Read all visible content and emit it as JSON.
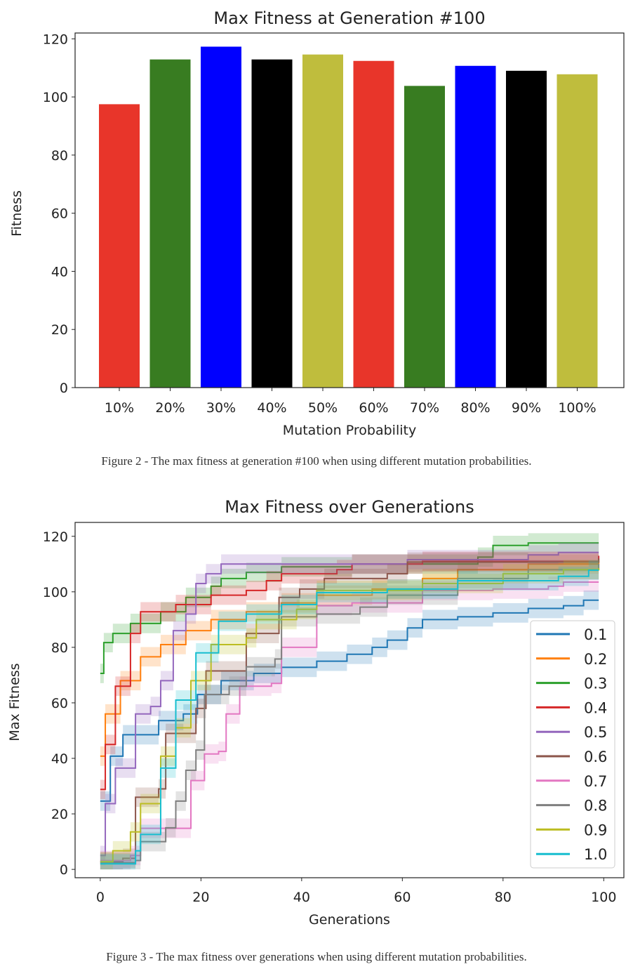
{
  "chart_data": [
    {
      "type": "bar",
      "title": "Max Fitness at Generation #100",
      "xlabel": "Mutation Probability",
      "ylabel": "Fitness",
      "ylim": [
        0,
        122
      ],
      "yticks": [
        0,
        20,
        40,
        60,
        80,
        100,
        120
      ],
      "grid": false,
      "categories": [
        "10%",
        "20%",
        "30%",
        "40%",
        "50%",
        "60%",
        "70%",
        "80%",
        "90%",
        "100%"
      ],
      "values": [
        97.5,
        112.9,
        117.3,
        112.9,
        114.6,
        112.4,
        103.8,
        110.7,
        109,
        107.8
      ],
      "colors": [
        "#e8352a",
        "#387c21",
        "#0000ff",
        "#000000",
        "#bfbd3d",
        "#e8352a",
        "#387c21",
        "#0000ff",
        "#000000",
        "#bfbd3d"
      ],
      "caption": "Figure 2 - The max fitness at generation #100 when using different mutation probabilities."
    },
    {
      "type": "line",
      "title": "Max Fitness over Generations",
      "xlabel": "Generations",
      "ylabel": "Max Fitness",
      "xlim": [
        -5,
        104
      ],
      "ylim": [
        -3,
        125
      ],
      "xticks": [
        0,
        20,
        40,
        60,
        80,
        100
      ],
      "yticks": [
        0,
        20,
        40,
        60,
        80,
        100,
        120
      ],
      "grid": false,
      "legend": "center-right",
      "series": [
        {
          "name": "0.1",
          "color": "#1f77b4",
          "x": [
            0,
            2,
            4.5,
            11.6,
            16.5,
            19.3,
            24,
            30.5,
            36,
            43,
            49,
            54,
            57,
            61,
            64,
            71,
            78,
            85,
            92,
            96,
            99
          ],
          "y": [
            24.6,
            40.8,
            48.5,
            53.6,
            56,
            63,
            68,
            70.6,
            72.8,
            75,
            77.5,
            80,
            82.6,
            87,
            90,
            91,
            92.4,
            94,
            95,
            97,
            97
          ]
        },
        {
          "name": "0.2",
          "color": "#ff7f0e",
          "x": [
            0,
            1,
            4,
            8,
            12,
            17,
            22,
            29,
            36,
            43,
            54,
            64,
            71,
            85,
            99
          ],
          "y": [
            40.8,
            56,
            68,
            76.6,
            81,
            86,
            90,
            92.8,
            96,
            98.8,
            101,
            104.8,
            108,
            110,
            111
          ]
        },
        {
          "name": "0.3",
          "color": "#2ca02c",
          "x": [
            0,
            0.7,
            2.5,
            6,
            12,
            17,
            22,
            24,
            29,
            36,
            50,
            75,
            78,
            85,
            99
          ],
          "y": [
            70.6,
            81.7,
            85,
            88.6,
            92.8,
            98,
            102,
            104.8,
            107,
            109,
            110,
            112.5,
            116.7,
            117.6,
            117.6
          ]
        },
        {
          "name": "0.4",
          "color": "#d62728",
          "x": [
            0,
            1,
            3,
            6,
            8,
            15,
            22,
            29,
            33,
            36,
            47,
            50,
            64,
            99
          ],
          "y": [
            28.8,
            45,
            66,
            85,
            92.8,
            95.4,
            98.8,
            100.5,
            104,
            106.5,
            108,
            110,
            111,
            113
          ]
        },
        {
          "name": "0.5",
          "color": "#9467bd",
          "x": [
            0,
            1,
            3,
            7,
            10,
            12,
            14.5,
            17,
            19,
            21,
            24,
            36,
            57,
            61,
            85,
            91,
            99
          ],
          "y": [
            5,
            23.7,
            36.5,
            56,
            58.7,
            68,
            86,
            92,
            103,
            106.5,
            110,
            110,
            110,
            111.6,
            113.3,
            114.2,
            114.2
          ]
        },
        {
          "name": "0.6",
          "color": "#8c564b",
          "x": [
            0,
            4.5,
            7,
            11.6,
            13,
            17,
            19,
            21,
            27,
            29,
            34,
            35.5,
            39.6,
            44.5,
            57,
            61,
            99
          ],
          "y": [
            2.8,
            4,
            26,
            29,
            49,
            49,
            58,
            71.5,
            71.5,
            85,
            85,
            98,
            101,
            104.8,
            106.5,
            110.7,
            112
          ]
        },
        {
          "name": "0.7",
          "color": "#e377c2",
          "x": [
            0,
            6,
            8,
            15.8,
            18,
            20.7,
            23.5,
            25,
            27.7,
            34,
            36,
            43,
            50,
            64,
            78,
            89,
            92,
            99
          ],
          "y": [
            3.2,
            5,
            14.8,
            14.8,
            32,
            41.6,
            42.5,
            56,
            66,
            67,
            80,
            95,
            96,
            100.5,
            101,
            102,
            103.5,
            103.5
          ]
        },
        {
          "name": "0.8",
          "color": "#7f7f7f",
          "x": [
            0,
            7,
            8,
            11.6,
            13,
            15,
            17,
            19,
            20.7,
            25.6,
            29,
            34.7,
            36,
            43,
            51.6,
            57,
            71,
            85,
            99
          ],
          "y": [
            2.4,
            3.2,
            10,
            10,
            15,
            24.6,
            35.7,
            43,
            63,
            66,
            73,
            75.8,
            91,
            92,
            94.5,
            98.8,
            104.8,
            108,
            110
          ]
        },
        {
          "name": "0.9",
          "color": "#bcbd22",
          "x": [
            0,
            2.5,
            6,
            8,
            12,
            15,
            18,
            22,
            29,
            31,
            36,
            39,
            43,
            64,
            80,
            92,
            99
          ],
          "y": [
            2.8,
            6.7,
            13.5,
            23.7,
            40.8,
            51,
            68,
            81,
            83.4,
            90,
            90,
            93.7,
            100.5,
            103,
            106.5,
            108,
            108.6
          ]
        },
        {
          "name": "1.0",
          "color": "#17becf",
          "x": [
            0,
            7,
            8,
            12,
            15,
            19,
            23.5,
            29,
            36,
            43,
            57,
            71,
            91,
            97,
            99
          ],
          "y": [
            2,
            6.7,
            12.6,
            36.5,
            61,
            78,
            89.4,
            92,
            95.4,
            99.7,
            101,
            104,
            105.6,
            107.8,
            107.8
          ]
        }
      ],
      "caption": "Figure 3 - The max fitness over generations when using different mutation probabilities."
    }
  ]
}
